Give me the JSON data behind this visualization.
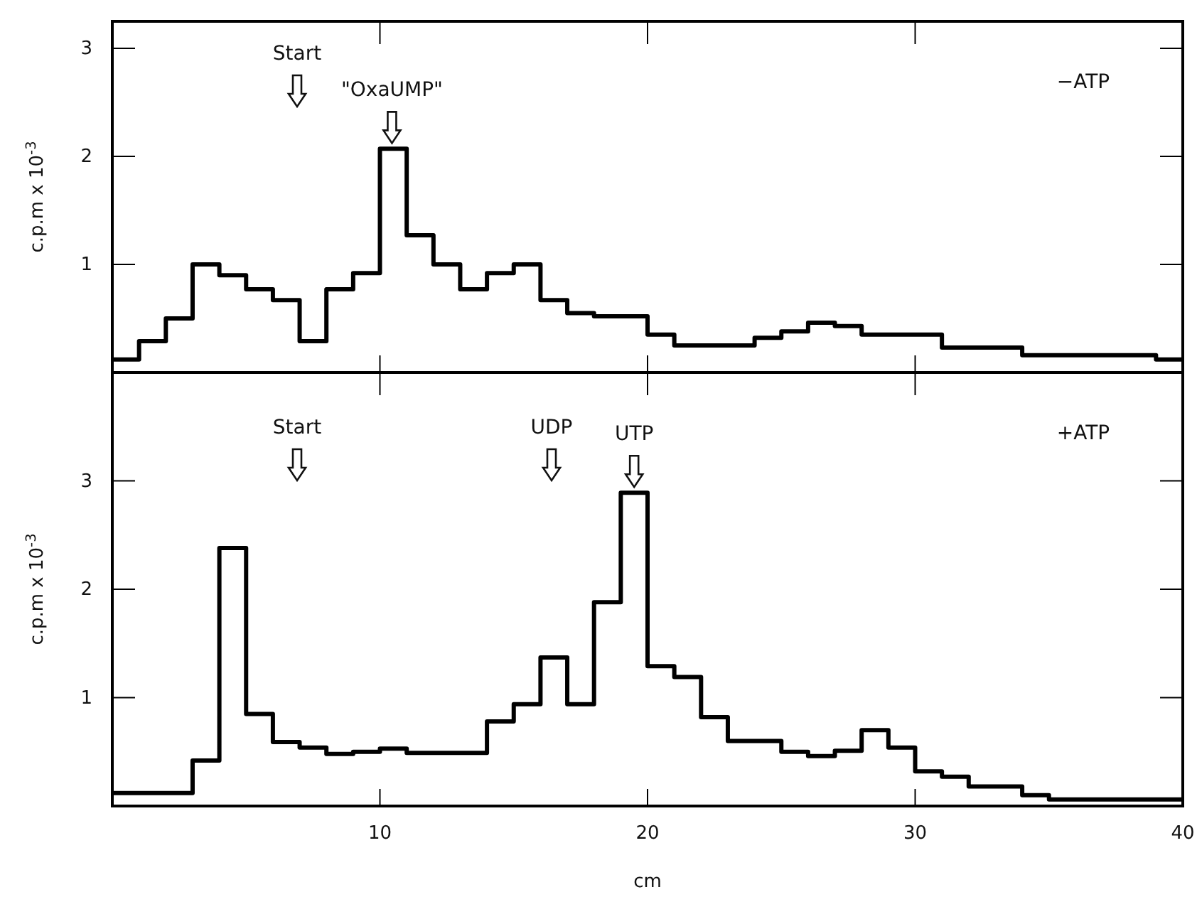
{
  "chart_data": [
    {
      "type": "histogram",
      "ylabel": "c.p.m x 10$^{-3}$",
      "xlim": [
        0,
        40
      ],
      "ylim": [
        0,
        3.25
      ],
      "xticks": [
        10,
        20,
        30
      ],
      "yticks": [
        1,
        2,
        3
      ],
      "tick_labels": "y",
      "bins": [
        0,
        1,
        2,
        3,
        4,
        5,
        6,
        7,
        8,
        9,
        10,
        11,
        12,
        13,
        14,
        15,
        16,
        17,
        18,
        20,
        21,
        24,
        25,
        26,
        27,
        28,
        31,
        34,
        39,
        40
      ],
      "values": [
        0.12,
        0.29,
        0.5,
        1.0,
        0.9,
        0.77,
        0.67,
        0.29,
        0.77,
        0.92,
        2.07,
        1.27,
        1.0,
        0.77,
        0.92,
        1.0,
        0.67,
        0.55,
        0.52,
        0.35,
        0.25,
        0.32,
        0.38,
        0.46,
        0.43,
        0.35,
        0.23,
        0.16,
        0.12
      ],
      "annotations": [
        "−ATP",
        "Start",
        {
          "text": "\"OxaUMP\"",
          "x": 10.45,
          "y": 2.07
        }
      ]
    },
    {
      "type": "histogram",
      "xlabel": "cm",
      "ylabel": "c.p.m x 10$^{-3}$",
      "xlim": [
        0,
        40
      ],
      "ylim": [
        0,
        4
      ],
      "xticks": [
        10,
        20,
        30,
        40
      ],
      "yticks": [
        1,
        2,
        3
      ],
      "bins": [
        0,
        3,
        4,
        5,
        6,
        7,
        8,
        9,
        10,
        11,
        14,
        15,
        16,
        17,
        18,
        19,
        20,
        21,
        22,
        23,
        25,
        26,
        27,
        28,
        29,
        30,
        31,
        32,
        34,
        35,
        40
      ],
      "values": [
        0.12,
        0.42,
        2.38,
        0.85,
        0.59,
        0.54,
        0.48,
        0.5,
        0.53,
        0.49,
        0.78,
        0.94,
        1.37,
        0.94,
        1.88,
        2.89,
        1.29,
        1.19,
        0.82,
        0.6,
        0.5,
        0.46,
        0.51,
        0.7,
        0.54,
        0.32,
        0.27,
        0.18,
        0.1,
        0.06
      ],
      "annotations": [
        "+ATP",
        "Start",
        "UDP",
        {
          "text": "UTP",
          "x": 19.5,
          "y": 2.89
        }
      ]
    }
  ]
}
